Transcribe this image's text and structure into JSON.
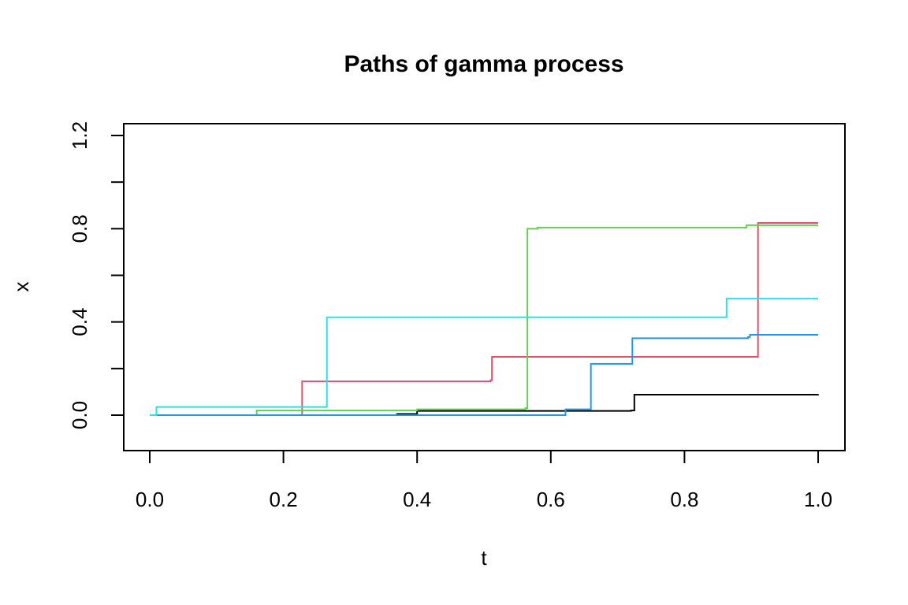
{
  "chart_data": {
    "type": "line",
    "title": "Paths of gamma process",
    "xlabel": "t",
    "ylabel": "x",
    "xlim": [
      0.0,
      1.0
    ],
    "ylim": [
      -0.15,
      1.28
    ],
    "xticks": [
      0.0,
      0.2,
      0.4,
      0.6,
      0.8,
      1.0
    ],
    "xtick_labels": [
      "0.0",
      "0.2",
      "0.4",
      "0.6",
      "0.8",
      "1.0"
    ],
    "yticks": [
      0.0,
      0.2,
      0.4,
      0.6,
      0.8,
      1.0,
      1.2
    ],
    "ytick_labels": [
      "0.0",
      "",
      "0.4",
      "",
      "0.8",
      "",
      "1.2"
    ],
    "grid": false,
    "step": true,
    "series": [
      {
        "color": "#000000",
        "points": [
          [
            0.0,
            0.0
          ],
          [
            0.37,
            0.005
          ],
          [
            0.4,
            0.018
          ],
          [
            0.72,
            0.02
          ],
          [
            0.725,
            0.088
          ],
          [
            1.0,
            0.09
          ]
        ]
      },
      {
        "color": "#DF536B",
        "points": [
          [
            0.0,
            0.0
          ],
          [
            0.228,
            0.145
          ],
          [
            0.51,
            0.15
          ],
          [
            0.512,
            0.25
          ],
          [
            0.905,
            0.25
          ],
          [
            0.91,
            0.825
          ],
          [
            1.0,
            0.825
          ]
        ]
      },
      {
        "color": "#61D04F",
        "points": [
          [
            0.0,
            0.0
          ],
          [
            0.16,
            0.02
          ],
          [
            0.4,
            0.025
          ],
          [
            0.562,
            0.03
          ],
          [
            0.565,
            0.8
          ],
          [
            0.58,
            0.805
          ],
          [
            0.89,
            0.805
          ],
          [
            0.893,
            0.815
          ],
          [
            1.0,
            0.815
          ]
        ]
      },
      {
        "color": "#2297E6",
        "points": [
          [
            0.0,
            0.0
          ],
          [
            0.62,
            0.0
          ],
          [
            0.622,
            0.025
          ],
          [
            0.658,
            0.025
          ],
          [
            0.66,
            0.22
          ],
          [
            0.72,
            0.22
          ],
          [
            0.722,
            0.33
          ],
          [
            0.895,
            0.335
          ],
          [
            0.898,
            0.345
          ],
          [
            1.0,
            0.345
          ]
        ]
      },
      {
        "color": "#28E2E5",
        "points": [
          [
            0.0,
            0.0
          ],
          [
            0.01,
            0.035
          ],
          [
            0.262,
            0.035
          ],
          [
            0.265,
            0.42
          ],
          [
            0.86,
            0.42
          ],
          [
            0.863,
            0.5
          ],
          [
            1.0,
            0.5
          ]
        ]
      }
    ]
  }
}
